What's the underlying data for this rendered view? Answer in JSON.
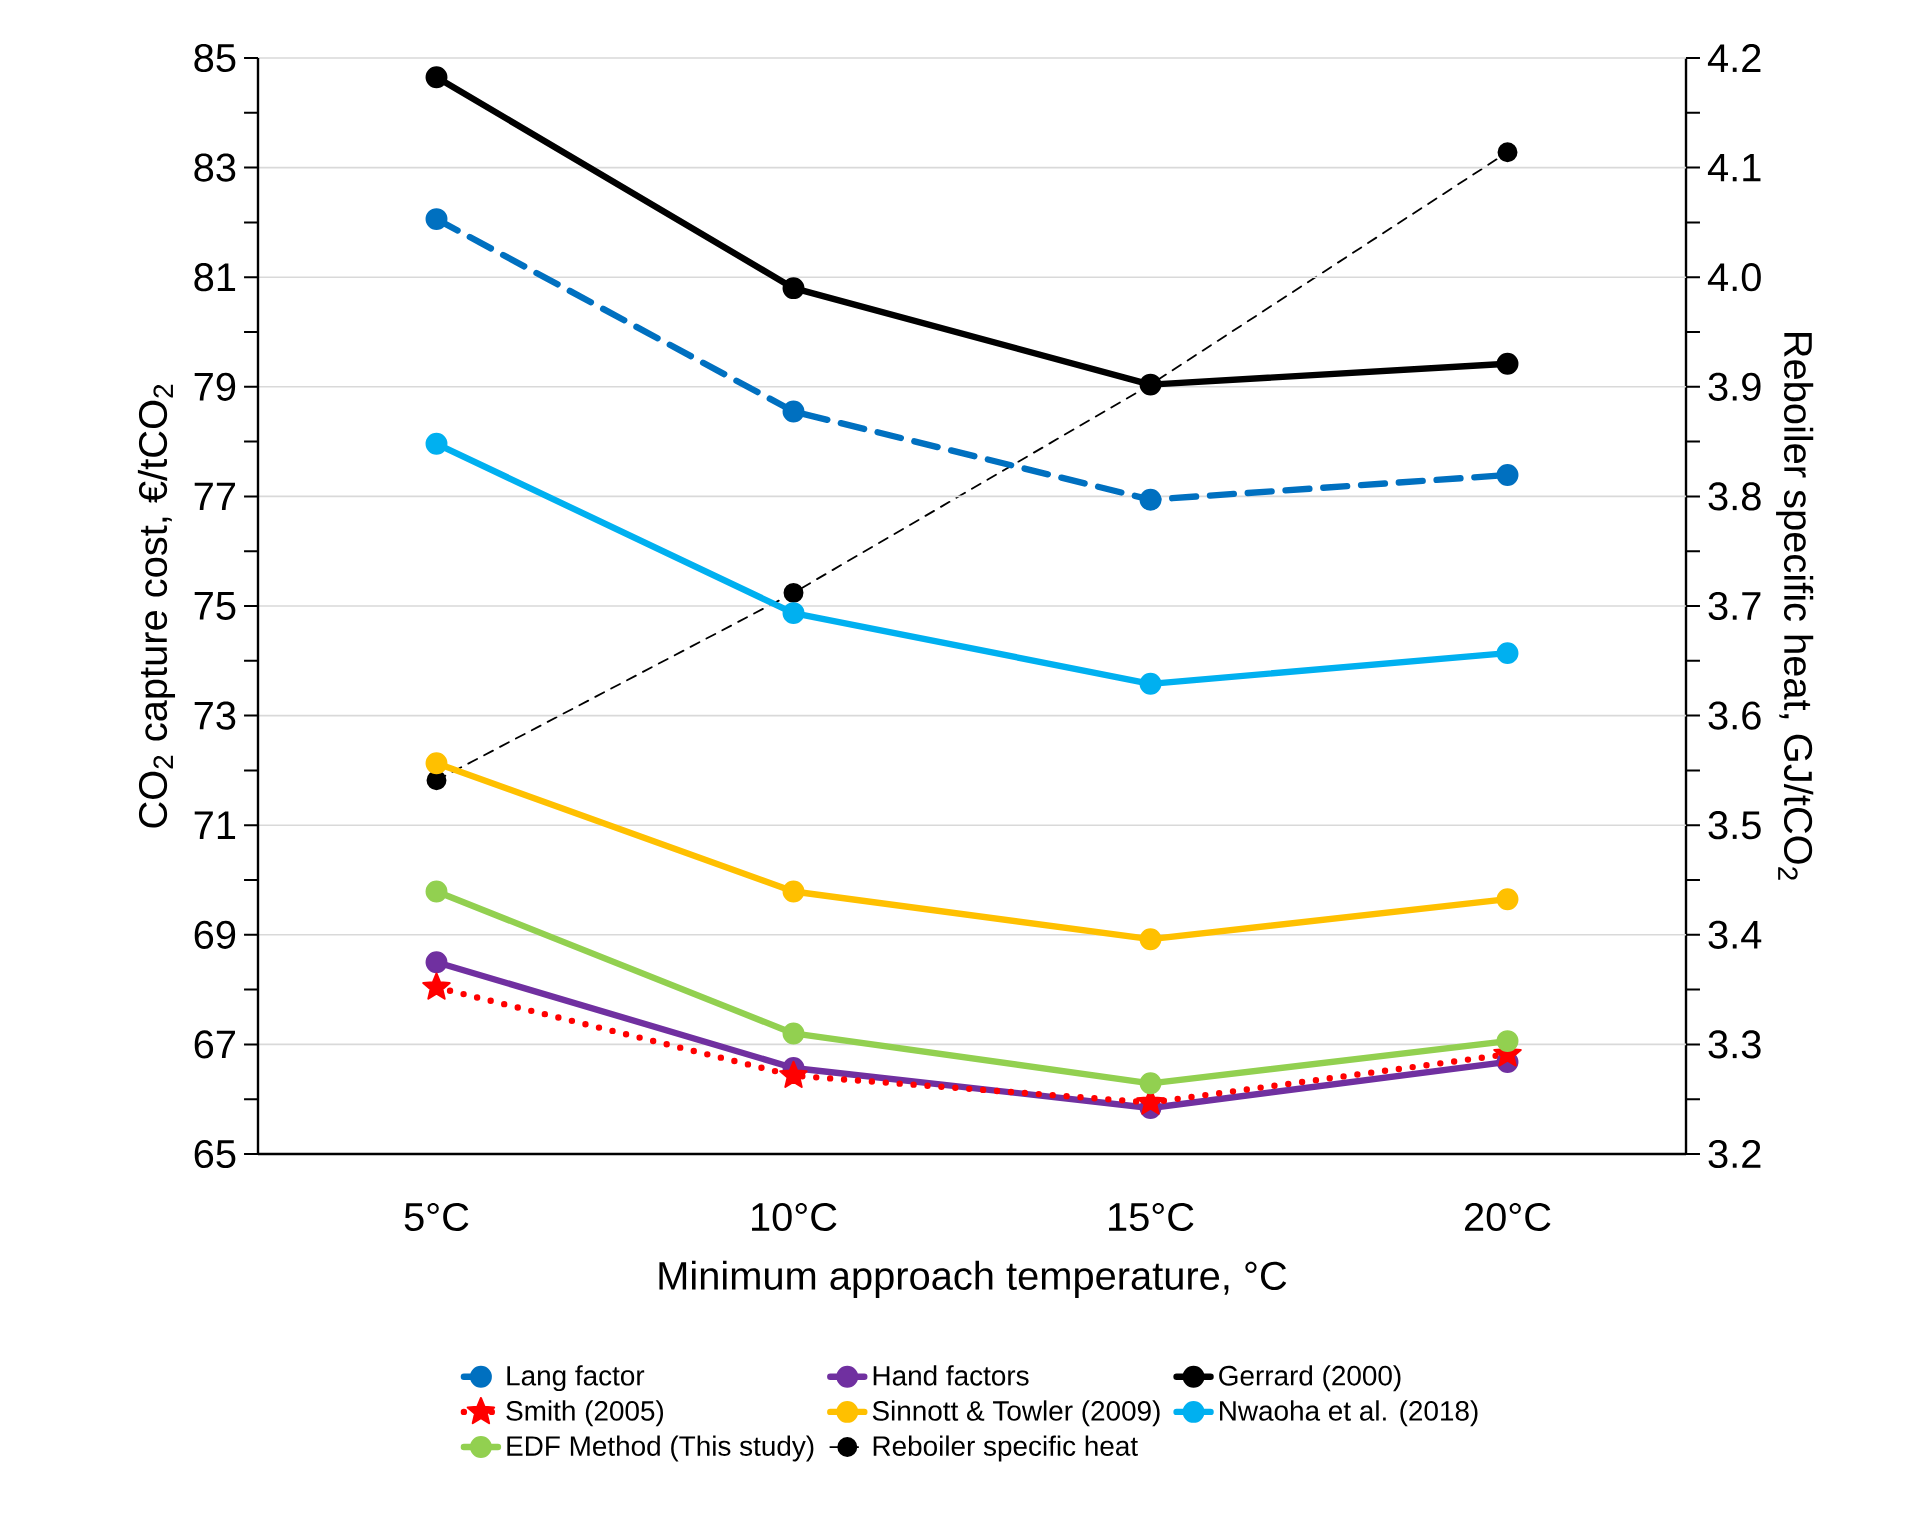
{
  "chart_data": {
    "type": "line",
    "categories": [
      "5°C",
      "10°C",
      "15°C",
      "20°C"
    ],
    "xlabel": "Minimum approach temperature, °C",
    "ylabel": "CO$_{2}$ capture cost, €/tCO$_{2}$",
    "y2label": "Reboiler specific heat, GJ/tCO$_{2}$",
    "ylim": [
      65,
      85
    ],
    "yticks": [
      65,
      67,
      69,
      71,
      73,
      75,
      77,
      79,
      81,
      83,
      85
    ],
    "y2lim": [
      3.2,
      4.2
    ],
    "y2ticks": [
      3.2,
      3.3,
      3.4,
      3.5,
      3.6,
      3.7,
      3.8,
      3.9,
      {
        "value": 4.0,
        "label": "4.0"
      },
      4.1,
      4.2
    ],
    "grid": "y",
    "legend": "bottom",
    "marker": "circle",
    "line_style": "solid",
    "series": [
      {
        "name": "Lang factor",
        "color": "#0070c0",
        "line_style": "dashed",
        "values": [
          82.06,
          78.55,
          76.94,
          77.39
        ]
      },
      {
        "name": "Hand factors",
        "color": "#7030a0",
        "values": [
          68.5,
          66.57,
          65.84,
          66.68
        ]
      },
      {
        "name": "Gerrard (2000)",
        "color": "#000000",
        "values": [
          84.65,
          80.8,
          79.04,
          79.42
        ]
      },
      {
        "name": "Smith (2005)",
        "color": "#ff0000",
        "line_style": "dotted",
        "marker": "star",
        "values": [
          68.04,
          66.43,
          65.94,
          66.82
        ]
      },
      {
        "name": "Sinnott & Towler (2009)",
        "color": "#ffc000",
        "values": [
          72.13,
          69.79,
          68.92,
          69.65
        ]
      },
      {
        "name": "Nwaoha et al. (2018)",
        "color": "#00b0f0",
        "values": [
          77.96,
          74.87,
          73.58,
          74.14
        ]
      },
      {
        "name": "EDF Method (This study)",
        "color": "#92d050",
        "values": [
          69.79,
          67.2,
          66.29,
          67.06
        ]
      },
      {
        "name": "Reboiler specific heat",
        "color": "#000000",
        "line_style": "dashed",
        "axis": "y2",
        "values": [
          3.541,
          3.712,
          3.902,
          4.114
        ]
      }
    ]
  }
}
